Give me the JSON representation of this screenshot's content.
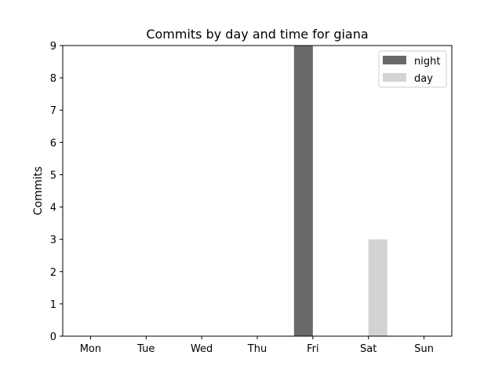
{
  "chart_data": {
    "type": "bar",
    "title": "Commits by day and time for giana",
    "xlabel": "",
    "ylabel": "Commits",
    "categories": [
      "Mon",
      "Tue",
      "Wed",
      "Thu",
      "Fri",
      "Sat",
      "Sun"
    ],
    "ylim": [
      0,
      9
    ],
    "yticks": [
      0,
      1,
      2,
      3,
      4,
      5,
      6,
      7,
      8,
      9
    ],
    "grid": false,
    "legend_position": "top-right",
    "series": [
      {
        "name": "night",
        "color": "#696969",
        "values": [
          0,
          0,
          0,
          0,
          9,
          0,
          0
        ],
        "offset": -1
      },
      {
        "name": "day",
        "color": "#d3d3d3",
        "values": [
          0,
          0,
          0,
          0,
          0,
          3,
          0
        ],
        "offset": 1
      }
    ]
  }
}
